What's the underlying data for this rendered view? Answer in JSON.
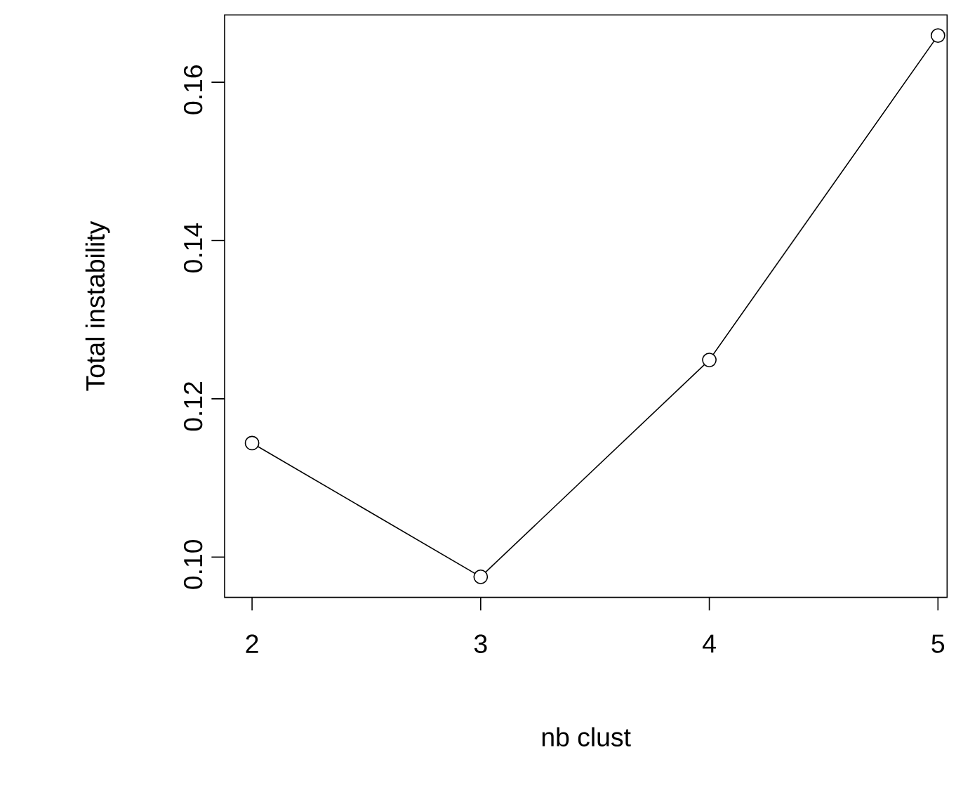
{
  "chart_data": {
    "type": "line",
    "xlabel": "nb clust",
    "ylabel": "Total instability",
    "x": [
      2,
      3,
      4,
      5
    ],
    "values": [
      0.1144,
      0.0975,
      0.1249,
      0.1659
    ],
    "color": "#000000",
    "xlim": [
      1.88,
      5.04
    ],
    "ylim": [
      0.0949,
      0.1685
    ],
    "xticks": [
      2,
      3,
      4,
      5
    ],
    "yticks": [
      {
        "value": 0.1,
        "label": "0.10"
      },
      {
        "value": 0.12,
        "label": "0.12"
      },
      {
        "value": 0.14,
        "label": "0.14"
      },
      {
        "value": 0.16,
        "label": "0.16"
      }
    ],
    "marker": "circle",
    "line_style": "solid"
  }
}
